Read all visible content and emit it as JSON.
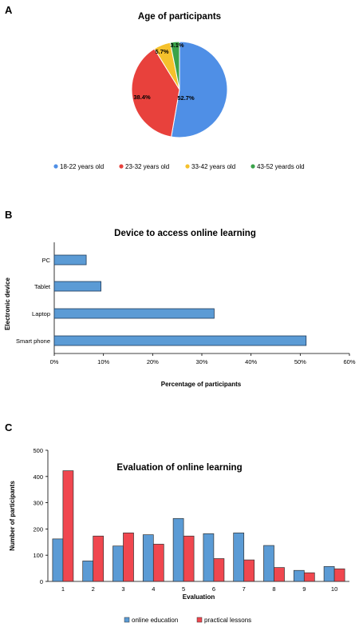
{
  "figure": {
    "panels": [
      "A",
      "B",
      "C"
    ]
  },
  "chart_data": [
    {
      "type": "pie",
      "title": "Age of participants",
      "slices": [
        {
          "label": "18-22 years old",
          "value": 52.7,
          "display": "52.7%",
          "color": "#4f8fe6"
        },
        {
          "label": "23-32 years old",
          "value": 38.4,
          "display": "38.4%",
          "color": "#e8413c"
        },
        {
          "label": "33-42 years old",
          "value": 5.7,
          "display": "5.7%",
          "color": "#f5c12c"
        },
        {
          "label": "43-52 yeards old",
          "value": 3.1,
          "display": "3.1%",
          "color": "#3aa34a"
        }
      ],
      "legend_position": "bottom"
    },
    {
      "type": "bar",
      "orientation": "horizontal",
      "title": "Device to access online learning",
      "xlabel": "Percentage of participants",
      "ylabel": "Electronic device",
      "categories": [
        "PC",
        "Tablet",
        "Laptop",
        "Smart phone"
      ],
      "values": [
        6.5,
        9.5,
        32.5,
        51.2
      ],
      "xlim": [
        0,
        60
      ],
      "xticks": [
        "0%",
        "10%",
        "20%",
        "30%",
        "40%",
        "50%",
        "60%"
      ],
      "color": "#5b9bd5"
    },
    {
      "type": "bar",
      "title": "Evaluation of online learning",
      "xlabel": "Evaluation",
      "ylabel": "Number of participants",
      "categories": [
        "1",
        "2",
        "3",
        "4",
        "5",
        "6",
        "7",
        "8",
        "9",
        "10"
      ],
      "series": [
        {
          "name": "online education",
          "color": "#5b9bd5",
          "values": [
            162,
            78,
            135,
            178,
            240,
            182,
            185,
            137,
            42,
            57
          ]
        },
        {
          "name": "practical lessons",
          "color": "#f0474f",
          "values": [
            422,
            173,
            185,
            142,
            173,
            87,
            82,
            53,
            33,
            48
          ]
        }
      ],
      "ylim": [
        0,
        500
      ],
      "yticks": [
        "0",
        "100",
        "200",
        "300",
        "400",
        "500"
      ],
      "legend_position": "bottom"
    }
  ]
}
